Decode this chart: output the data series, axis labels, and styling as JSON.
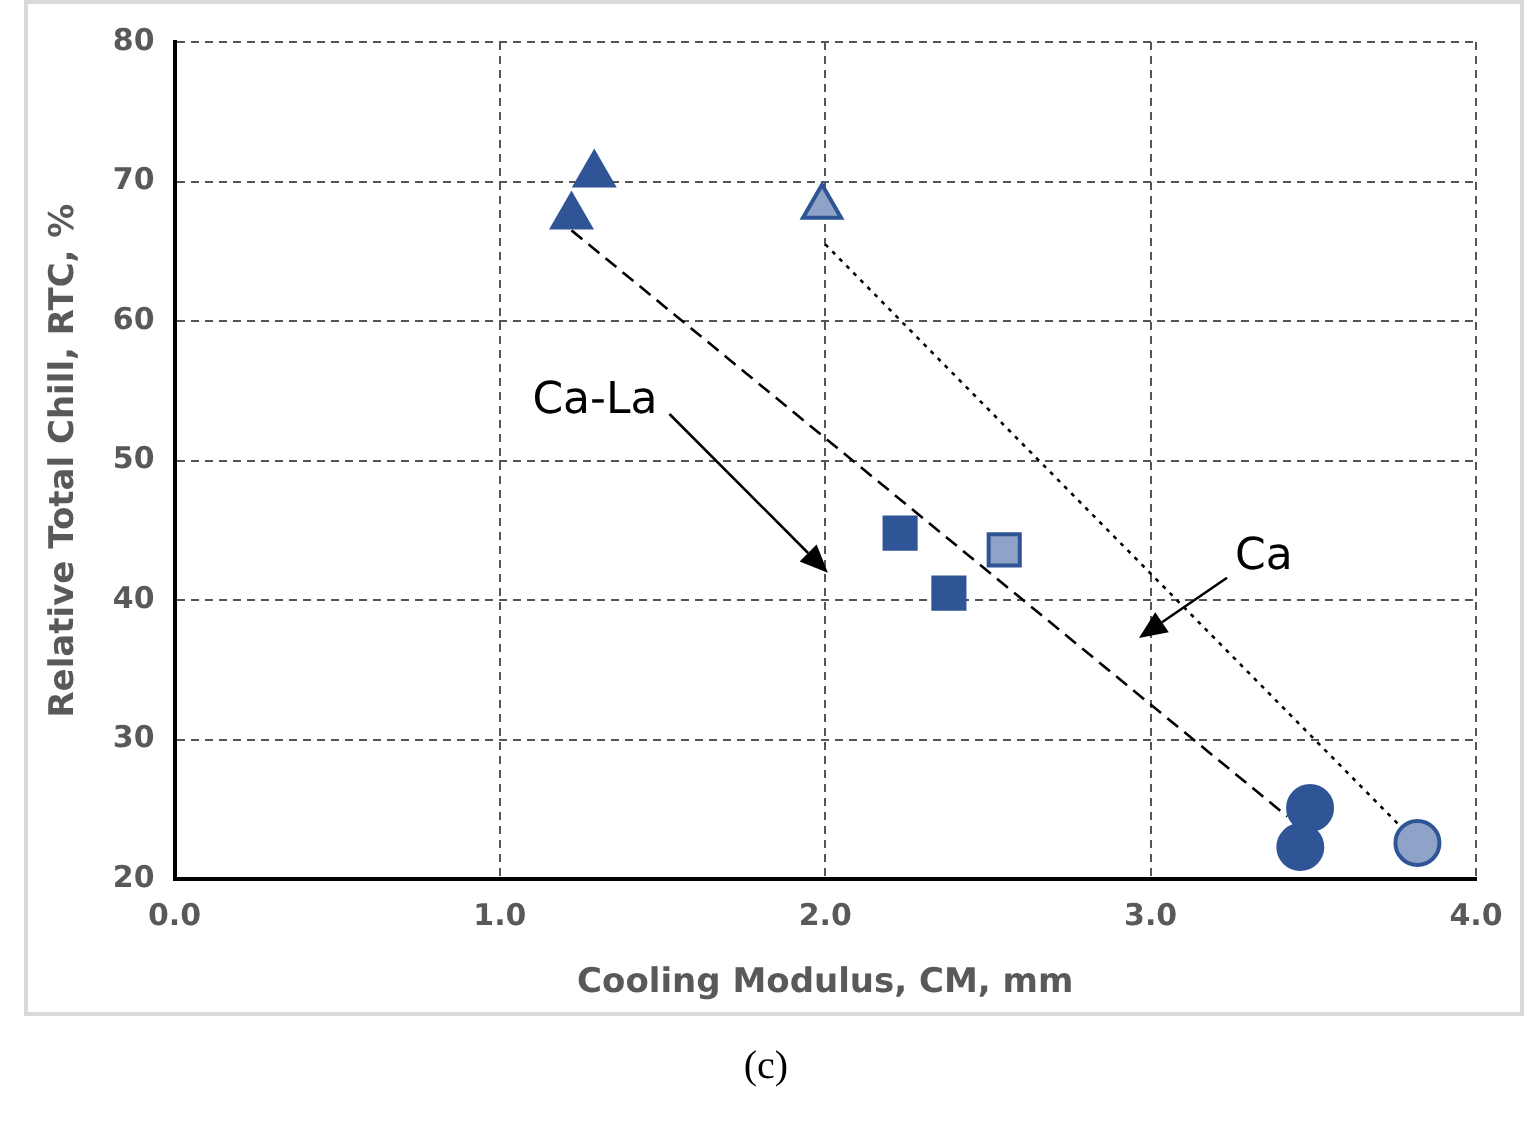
{
  "chart_data": {
    "type": "scatter",
    "xlabel": "Cooling Modulus, CM, mm",
    "ylabel": "Relative Total Chill, RTC, %",
    "xlim": [
      0,
      4
    ],
    "xticks": [
      {
        "value": 0,
        "label": "0.0"
      },
      {
        "value": 1,
        "label": "1.0"
      },
      {
        "value": 2,
        "label": "2.0"
      },
      {
        "value": 3,
        "label": "3.0"
      },
      {
        "value": 4,
        "label": "4.0"
      }
    ],
    "ylim": [
      20,
      80
    ],
    "yticks": [
      20,
      30,
      40,
      50,
      60,
      70,
      80
    ],
    "grid": true,
    "legend": false,
    "series": [
      {
        "marker": "triangle",
        "color": "#2f5597",
        "x": [
          1.22,
          1.29
        ],
        "values": [
          67.5,
          70.5
        ]
      },
      {
        "marker": "square",
        "color": "#2f5597",
        "x": [
          2.23,
          2.38
        ],
        "values": [
          44.8,
          40.5
        ]
      },
      {
        "marker": "circle",
        "color": "#2f5597",
        "x": [
          3.49,
          3.46
        ],
        "values": [
          25.1,
          22.3
        ]
      },
      {
        "marker": "triangle",
        "color": "#8fa3c8",
        "x": [
          1.99
        ],
        "values": [
          68.2
        ]
      },
      {
        "marker": "square",
        "color": "#8fa3c8",
        "x": [
          2.55
        ],
        "values": [
          43.6
        ]
      },
      {
        "marker": "circle",
        "color": "#8fa3c8",
        "x": [
          3.82
        ],
        "values": [
          22.6
        ]
      },
      {
        "type": "line",
        "line_style": "dashed",
        "color": "#000000",
        "x": [
          1.22,
          3.42
        ],
        "values": [
          66.5,
          24.5
        ]
      },
      {
        "type": "line",
        "line_style": "dotted",
        "color": "#000000",
        "x": [
          2.0,
          3.78
        ],
        "values": [
          65.5,
          23.5
        ]
      }
    ],
    "annotations": [
      "Ca-La",
      "Ca",
      "(c)"
    ]
  }
}
